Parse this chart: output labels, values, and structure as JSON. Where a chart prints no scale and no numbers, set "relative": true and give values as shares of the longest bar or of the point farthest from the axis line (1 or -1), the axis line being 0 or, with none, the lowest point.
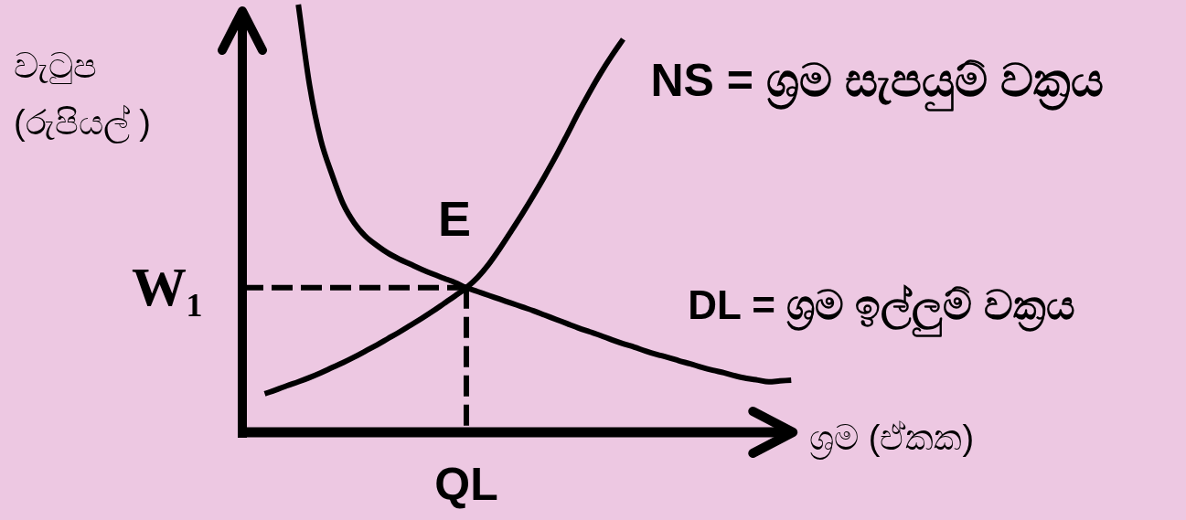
{
  "chart_data": {
    "type": "line",
    "relative": true,
    "categories": [
      null,
      null,
      null,
      null,
      null,
      null,
      null,
      null,
      null,
      null,
      null,
      null,
      null,
      null,
      null,
      null,
      null,
      null,
      null,
      null,
      null,
      null,
      null,
      null,
      null,
      null,
      null,
      null,
      null,
      null,
      null,
      null,
      null,
      null,
      null,
      null,
      null,
      null,
      null,
      null,
      null,
      null,
      null,
      null,
      null,
      null,
      null,
      null,
      null,
      null
    ],
    "xlabel": "ශ්‍රම (ඒකක)",
    "ylabel": "වැටුප\n(රුපියල් )",
    "series": [
      {
        "name": "NS = ශ්‍රම සැපයුම් වක්‍රය",
        "color": "#000000",
        "values": [
          null,
          null,
          0.09,
          0.099,
          0.109,
          0.118,
          0.128,
          0.139,
          0.151,
          0.163,
          0.176,
          0.19,
          0.204,
          0.219,
          0.234,
          0.25,
          0.266,
          0.283,
          0.301,
          0.319,
          0.338,
          0.362,
          0.393,
          0.43,
          0.47,
          0.511,
          0.554,
          0.599,
          0.646,
          0.696,
          0.747,
          0.795,
          0.84,
          0.881,
          0.919,
          null,
          null,
          null,
          null,
          null,
          null,
          null,
          null,
          null,
          null,
          null,
          null,
          null,
          null,
          null
        ]
      },
      {
        "name": "DL = ශ්‍රම ඉල්ලුම් වක්‍රය",
        "color": "#000000",
        "values": [
          null,
          null,
          null,
          null,
          null,
          1,
          0.812,
          0.684,
          0.603,
          0.534,
          0.489,
          0.458,
          0.437,
          0.419,
          0.405,
          0.393,
          0.381,
          0.37,
          0.36,
          0.35,
          0.338,
          0.329,
          0.32,
          0.311,
          0.302,
          0.293,
          0.284,
          0.274,
          0.264,
          0.254,
          0.244,
          0.235,
          0.226,
          0.216,
          0.207,
          0.199,
          0.19,
          0.182,
          0.175,
          0.167,
          0.16,
          0.152,
          0.145,
          0.139,
          0.132,
          0.126,
          0.122,
          0.118,
          0.12,
          0.122
        ]
      }
    ],
    "ref_lines": [
      {
        "axis": "y",
        "value": 0.338,
        "label": "W₁",
        "line_style": "dashed",
        "color": "#000000"
      },
      {
        "axis": "x",
        "label": "QL",
        "line_style": "dashed",
        "color": "#000000"
      }
    ],
    "annotations": [
      {
        "text": "E",
        "y": 0.338
      }
    ]
  }
}
